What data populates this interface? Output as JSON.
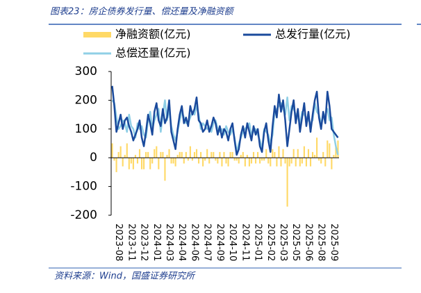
{
  "chart_data": {
    "type": "bar-line",
    "title": "图表23：房企债券发行量、偿还量及净融资额",
    "source": "资料来源：Wind，国盛证券研究所",
    "categories": [
      null,
      null,
      null,
      "2023-08",
      null,
      null,
      null,
      null,
      null,
      "2023-11",
      null,
      null,
      null,
      null,
      null,
      "2023-12",
      null,
      null,
      null,
      null,
      null,
      "2024-01",
      null,
      null,
      null,
      null,
      null,
      "2024-03",
      null,
      null,
      null,
      null,
      null,
      "2024-04",
      null,
      null,
      null,
      null,
      null,
      "2024-06",
      null,
      null,
      null,
      null,
      null,
      "2024-07",
      null,
      null,
      null,
      null,
      null,
      "2024-09",
      null,
      null,
      null,
      null,
      null,
      "2024-10",
      null,
      null,
      null,
      null,
      null,
      "2024-11",
      null,
      null,
      null,
      null,
      null,
      "2025-01",
      null,
      null,
      null,
      null,
      null,
      "2025-02",
      null,
      null,
      null,
      null,
      null,
      "2025-03",
      null,
      null,
      null,
      null,
      null,
      "2025-05",
      null,
      null,
      null,
      null,
      null,
      "2025-06",
      null,
      null,
      null,
      null,
      null,
      "2025-08",
      null,
      null,
      null,
      null,
      null,
      "2025-09",
      null,
      null
    ],
    "series": [
      {
        "name": "净融资额(亿元)",
        "color": "#ffd966",
        "kind": "bar",
        "values": [
          50,
          -10,
          -50,
          20,
          40,
          -30,
          10,
          50,
          -40,
          -20,
          -40,
          10,
          -20,
          30,
          -40,
          -40,
          20,
          20,
          -40,
          -20,
          30,
          40,
          -40,
          20,
          20,
          -80,
          10,
          30,
          -20,
          -20,
          -30,
          10,
          20,
          20,
          -20,
          20,
          -10,
          40,
          -10,
          20,
          30,
          -20,
          20,
          -30,
          -10,
          30,
          -20,
          20,
          20,
          -10,
          -20,
          20,
          -30,
          20,
          -20,
          -30,
          20,
          20,
          -10,
          -10,
          -20,
          10,
          20,
          -30,
          10,
          -30,
          -20,
          20,
          -20,
          20,
          -20,
          -10,
          -10,
          30,
          -20,
          -30,
          30,
          20,
          -30,
          40,
          -30,
          30,
          -20,
          -170,
          -30,
          -20,
          30,
          -30,
          30,
          -30,
          -20,
          40,
          -30,
          30,
          -30,
          20,
          10,
          70,
          -10,
          -20,
          20,
          -30,
          60,
          50,
          -40,
          10,
          40,
          60
        ]
      },
      {
        "name": "总发行量(亿元)",
        "color": "#1a4a9c",
        "kind": "line",
        "values": [
          250,
          180,
          90,
          120,
          150,
          100,
          130,
          140,
          110,
          90,
          60,
          80,
          100,
          130,
          70,
          40,
          90,
          150,
          120,
          80,
          160,
          190,
          130,
          110,
          170,
          120,
          140,
          200,
          90,
          60,
          30,
          100,
          150,
          180,
          120,
          140,
          110,
          180,
          150,
          170,
          210,
          130,
          120,
          90,
          100,
          130,
          90,
          110,
          140,
          120,
          80,
          110,
          70,
          100,
          90,
          60,
          100,
          120,
          60,
          10,
          30,
          80,
          110,
          70,
          120,
          90,
          60,
          110,
          80,
          100,
          40,
          20,
          90,
          120,
          60,
          20,
          110,
          180,
          140,
          220,
          160,
          200,
          130,
          40,
          100,
          160,
          200,
          120,
          170,
          90,
          140,
          190,
          110,
          160,
          90,
          150,
          200,
          230,
          140,
          100,
          160,
          120,
          230,
          180,
          100,
          90,
          80,
          70
        ]
      },
      {
        "name": "总偿还量(亿元)",
        "color": "#8fcfe6",
        "kind": "line",
        "values": [
          200,
          190,
          140,
          100,
          110,
          130,
          120,
          90,
          150,
          110,
          100,
          70,
          120,
          100,
          110,
          80,
          70,
          130,
          160,
          100,
          130,
          150,
          170,
          90,
          150,
          200,
          130,
          170,
          110,
          80,
          60,
          90,
          130,
          160,
          140,
          120,
          120,
          140,
          160,
          150,
          180,
          150,
          100,
          120,
          110,
          100,
          110,
          90,
          120,
          130,
          100,
          90,
          100,
          80,
          110,
          90,
          80,
          100,
          70,
          20,
          50,
          70,
          90,
          100,
          110,
          120,
          80,
          90,
          100,
          80,
          60,
          30,
          100,
          90,
          80,
          50,
          80,
          160,
          170,
          180,
          190,
          170,
          150,
          210,
          130,
          180,
          170,
          150,
          140,
          120,
          160,
          150,
          140,
          130,
          120,
          130,
          190,
          160,
          150,
          120,
          140,
          150,
          170,
          130,
          140,
          80,
          40,
          10
        ]
      }
    ],
    "ylim": [
      -200,
      300
    ],
    "yticks": [
      -200,
      -100,
      0,
      100,
      200,
      300
    ]
  }
}
